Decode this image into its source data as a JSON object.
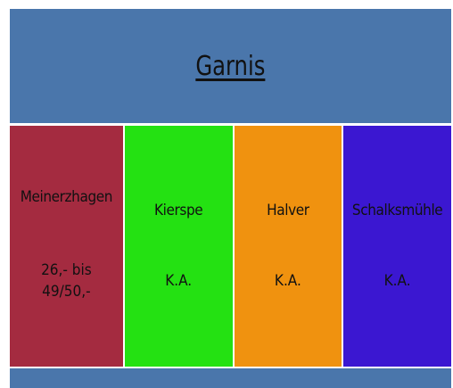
{
  "header": {
    "title": "Garnis"
  },
  "columns": [
    {
      "name": "Meinerzhagen",
      "price": [
        "26,- bis",
        "49/50,-"
      ],
      "color": "#a42b40"
    },
    {
      "name": "Kierspe",
      "price": [
        "K.A."
      ],
      "color": "#24e112"
    },
    {
      "name": "Halver",
      "price": [
        "K.A."
      ],
      "color": "#f0920f"
    },
    {
      "name": "Schalksmühle",
      "price": [
        "K.A."
      ],
      "color": "#3b17d1"
    }
  ]
}
